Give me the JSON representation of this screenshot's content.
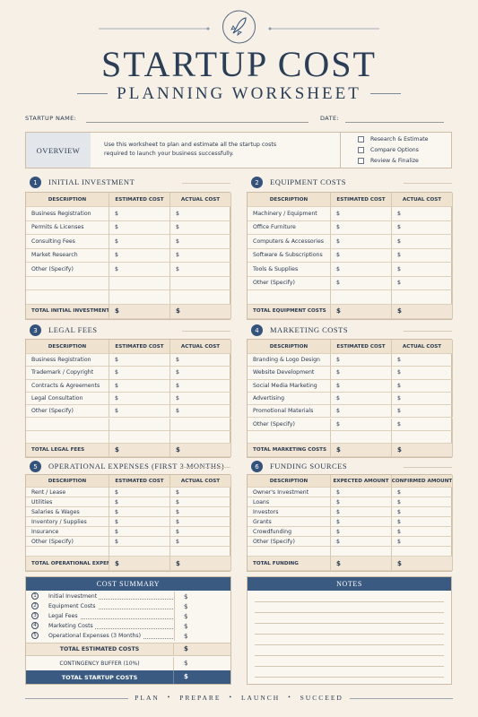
{
  "header": {
    "title": "STARTUP COST",
    "subtitle": "PLANNING WORKSHEET"
  },
  "fields": {
    "startup_name": "STARTUP NAME:",
    "date": "DATE:"
  },
  "overview": {
    "label": "OVERVIEW",
    "text": "Use this worksheet to plan and estimate all the startup costs required to launch your business successfully.",
    "checklist": [
      "Research & Estimate",
      "Compare Options",
      "Review & Finalize"
    ]
  },
  "currency": "$",
  "sections": [
    {
      "number": 1,
      "title": "INITIAL INVESTMENT",
      "columns": [
        "DESCRIPTION",
        "ESTIMATED COST",
        "ACTUAL COST"
      ],
      "rows": [
        "Business Registration",
        "Permits & Licenses",
        "Consulting Fees",
        "Market Research",
        "Other (Specify)"
      ],
      "total": "TOTAL INITIAL INVESTMENT"
    },
    {
      "number": 2,
      "title": "EQUIPMENT COSTS",
      "columns": [
        "DESCRIPTION",
        "ESTIMATED COST",
        "ACTUAL COST"
      ],
      "rows": [
        "Machinery / Equipment",
        "Office Furniture",
        "Computers & Accessories",
        "Software & Subscriptions",
        "Tools & Supplies",
        "Other (Specify)"
      ],
      "total": "TOTAL EQUIPMENT COSTS"
    },
    {
      "number": 3,
      "title": "LEGAL FEES",
      "columns": [
        "DESCRIPTION",
        "ESTIMATED COST",
        "ACTUAL COST"
      ],
      "rows": [
        "Business Registration",
        "Trademark / Copyright",
        "Contracts & Agreements",
        "Legal Consultation",
        "Other (Specify)"
      ],
      "total": "TOTAL LEGAL FEES"
    },
    {
      "number": 4,
      "title": "MARKETING COSTS",
      "columns": [
        "DESCRIPTION",
        "ESTIMATED COST",
        "ACTUAL COST"
      ],
      "rows": [
        "Branding & Logo Design",
        "Website Development",
        "Social Media Marketing",
        "Advertising",
        "Promotional Materials",
        "Other (Specify)"
      ],
      "total": "TOTAL MARKETING COSTS"
    },
    {
      "number": 5,
      "title": "OPERATIONAL EXPENSES (FIRST 3 MONTHS)",
      "columns": [
        "DESCRIPTION",
        "ESTIMATED COST",
        "ACTUAL COST"
      ],
      "rows": [
        "Rent / Lease",
        "Utilities",
        "Salaries & Wages",
        "Inventory / Supplies",
        "Insurance",
        "Other (Specify)"
      ],
      "total": "TOTAL OPERATIONAL EXPENSES"
    },
    {
      "number": 6,
      "title": "FUNDING SOURCES",
      "columns": [
        "DESCRIPTION",
        "EXPECTED AMOUNT",
        "CONFIRMED AMOUNT"
      ],
      "rows": [
        "Owner's Investment",
        "Loans",
        "Investors",
        "Grants",
        "Crowdfunding",
        "Other (Specify)"
      ],
      "total": "TOTAL FUNDING"
    }
  ],
  "summary": {
    "title": "COST SUMMARY",
    "items": [
      {
        "number": 1,
        "label": "Initial Investment"
      },
      {
        "number": 2,
        "label": "Equipment Costs"
      },
      {
        "number": 3,
        "label": "Legal Fees"
      },
      {
        "number": 4,
        "label": "Marketing Costs"
      },
      {
        "number": 5,
        "label": "Operational Expenses (3 Months)"
      }
    ],
    "total_estimated": "TOTAL ESTIMATED COSTS",
    "contingency": "CONTINGENCY BUFFER (10%)",
    "total_startup": "TOTAL STARTUP COSTS"
  },
  "notes": {
    "title": "NOTES"
  },
  "footer": [
    "PLAN",
    "PREPARE",
    "LAUNCH",
    "SUCCEED"
  ]
}
